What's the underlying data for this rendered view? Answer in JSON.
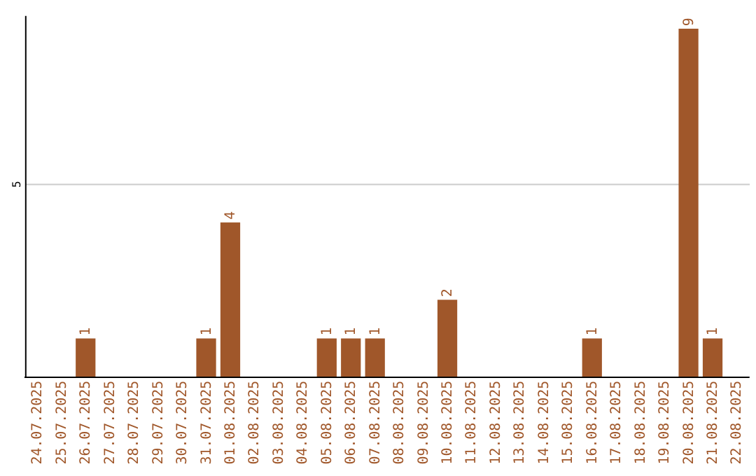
{
  "chart_data": {
    "type": "bar",
    "categories": [
      "24.07.2025",
      "25.07.2025",
      "26.07.2025",
      "27.07.2025",
      "28.07.2025",
      "29.07.2025",
      "30.07.2025",
      "31.07.2025",
      "01.08.2025",
      "02.08.2025",
      "03.08.2025",
      "04.08.2025",
      "05.08.2025",
      "06.08.2025",
      "07.08.2025",
      "08.08.2025",
      "09.08.2025",
      "10.08.2025",
      "11.08.2025",
      "12.08.2025",
      "13.08.2025",
      "14.08.2025",
      "15.08.2025",
      "16.08.2025",
      "17.08.2025",
      "18.08.2025",
      "19.08.2025",
      "20.08.2025",
      "21.08.2025",
      "22.08.2025"
    ],
    "values": [
      0,
      0,
      1,
      0,
      0,
      0,
      0,
      1,
      4,
      0,
      0,
      0,
      1,
      1,
      1,
      0,
      0,
      2,
      0,
      0,
      0,
      0,
      0,
      1,
      0,
      0,
      0,
      9,
      1,
      0
    ],
    "value_labels": [
      null,
      null,
      "1",
      null,
      null,
      null,
      null,
      "1",
      "4",
      null,
      null,
      null,
      "1",
      "1",
      "1",
      null,
      null,
      "2",
      null,
      null,
      null,
      null,
      null,
      "1",
      null,
      null,
      null,
      "9",
      "1",
      null
    ],
    "color": "#a0572a",
    "ylim": [
      0,
      9.35
    ],
    "yticks": [
      5
    ],
    "grid": "y"
  }
}
